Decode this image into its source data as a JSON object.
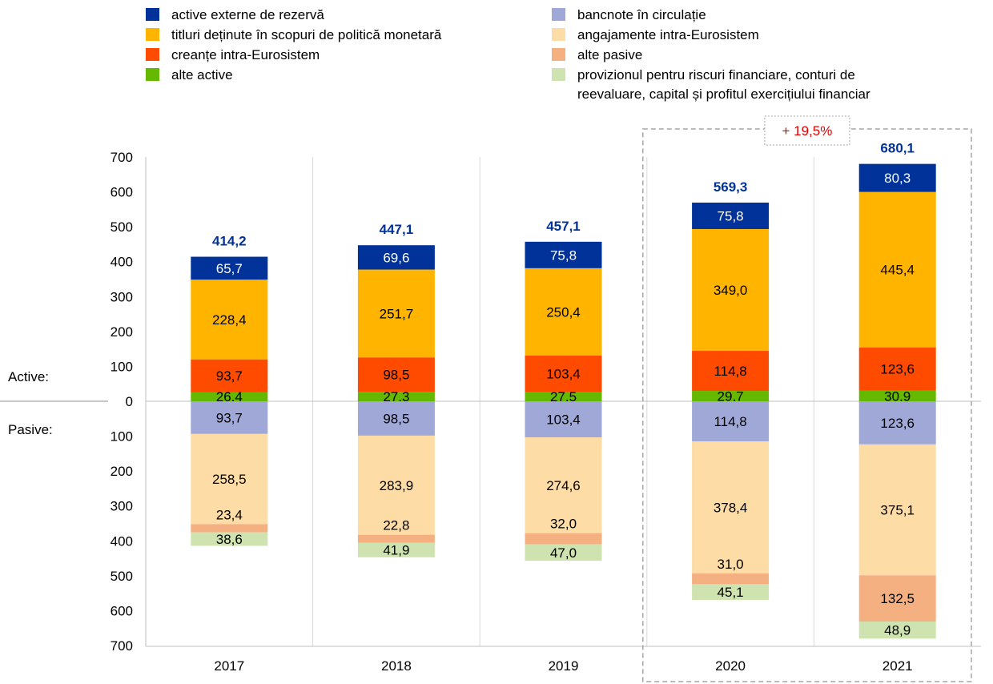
{
  "chart_data": {
    "type": "bar",
    "categories": [
      "2017",
      "2018",
      "2019",
      "2020",
      "2021"
    ],
    "ylim": [
      -700,
      700
    ],
    "yticks": [
      700,
      600,
      500,
      400,
      300,
      200,
      100,
      0,
      100,
      200,
      300,
      400,
      500,
      600,
      700
    ],
    "side_labels": {
      "assets": "Active:",
      "liabilities": "Pasive:"
    },
    "totals": [
      "414,2",
      "447,1",
      "457,1",
      "569,3",
      "680,1"
    ],
    "highlight": {
      "label": "+ 19,5%",
      "from_category": "2020",
      "to_category": "2021"
    },
    "legend": [
      {
        "name": "active externe de rezervă",
        "color": "#003299"
      },
      {
        "name": "titluri deținute în scopuri de politică monetară",
        "color": "#ffb400"
      },
      {
        "name": "creanțe intra-Eurosistem",
        "color": "#ff4b00"
      },
      {
        "name": "alte active",
        "color": "#65b800"
      },
      {
        "name": "bancnote în circulație",
        "color": "#a0a8d8"
      },
      {
        "name": "angajamente intra-Eurosistem",
        "color": "#fddca6"
      },
      {
        "name": "alte pasive",
        "color": "#f5b082"
      },
      {
        "name": "provizionul pentru riscuri financiare, conturi de reevaluare, capital și profitul exercițiului financiar",
        "line1": "provizionul pentru riscuri financiare, conturi de",
        "line2": "reevaluare, capital și profitul exercițiului financiar",
        "color": "#cfe3b0"
      }
    ],
    "assets": [
      {
        "name": "alte active",
        "color": "#65b800",
        "values": [
          26.4,
          27.3,
          27.5,
          29.7,
          30.9
        ],
        "labels": [
          "26,4",
          "27,3",
          "27,5",
          "29,7",
          "30,9"
        ]
      },
      {
        "name": "creanțe intra-Eurosistem",
        "color": "#ff4b00",
        "values": [
          93.7,
          98.5,
          103.4,
          114.8,
          123.6
        ],
        "labels": [
          "93,7",
          "98,5",
          "103,4",
          "114,8",
          "123,6"
        ]
      },
      {
        "name": "titluri deținute în scopuri de politică monetară",
        "color": "#ffb400",
        "values": [
          228.4,
          251.7,
          250.4,
          349.0,
          445.4
        ],
        "labels": [
          "228,4",
          "251,7",
          "250,4",
          "349,0",
          "445,4"
        ]
      },
      {
        "name": "active externe de rezervă",
        "color": "#003299",
        "values": [
          65.7,
          69.6,
          75.8,
          75.8,
          80.3
        ],
        "labels": [
          "65,7",
          "69,6",
          "75,8",
          "75,8",
          "80,3"
        ]
      }
    ],
    "liabilities": [
      {
        "name": "bancnote în circulație",
        "color": "#a0a8d8",
        "values": [
          93.7,
          98.5,
          103.4,
          114.8,
          123.6
        ],
        "labels": [
          "93,7",
          "98,5",
          "103,4",
          "114,8",
          "123,6"
        ]
      },
      {
        "name": "angajamente intra-Eurosistem",
        "color": "#fddca6",
        "values": [
          258.5,
          283.9,
          274.6,
          378.4,
          375.1
        ],
        "labels": [
          "258,5",
          "283,9",
          "274,6",
          "378,4",
          "375,1"
        ]
      },
      {
        "name": "alte pasive",
        "color": "#f5b082",
        "values": [
          23.4,
          22.8,
          32.0,
          31.0,
          132.5
        ],
        "labels": [
          "23,4",
          "22,8",
          "32,0",
          "31,0",
          "132,5"
        ]
      },
      {
        "name": "provizionul pentru riscuri financiare, conturi de reevaluare, capital și profitul exercițiului financiar",
        "color": "#cfe3b0",
        "values": [
          38.6,
          41.9,
          47.0,
          45.1,
          48.9
        ],
        "labels": [
          "38,6",
          "41,9",
          "47,0",
          "45,1",
          "48,9"
        ]
      }
    ]
  }
}
